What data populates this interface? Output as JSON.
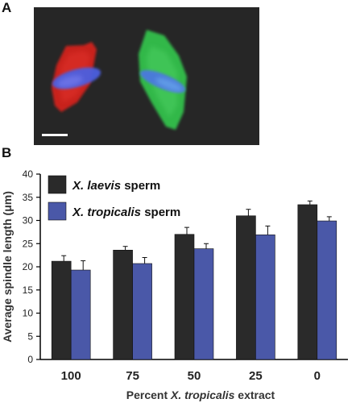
{
  "figure": {
    "panel_a_label": "A",
    "panel_b_label": "B"
  },
  "micrograph": {
    "background_color": "#262626",
    "spindle_left_color": "#c8211f",
    "spindle_right_color": "#33b84a",
    "chromatin_color": "#4b5fe0",
    "scale_bar_color": "#ffffff"
  },
  "chart_data": {
    "type": "bar",
    "categories": [
      "100",
      "75",
      "50",
      "25",
      "0"
    ],
    "xlabel_prefix": "Percent ",
    "xlabel_italic": "X. tropicalis",
    "xlabel_suffix": " extract",
    "ylabel": "Average spindle length (μm)",
    "ylim": [
      0,
      40
    ],
    "yticks": [
      0,
      5,
      10,
      15,
      20,
      25,
      30,
      35,
      40
    ],
    "grid": false,
    "legend_position": "top-left",
    "series": [
      {
        "name_italic": "X. laevis",
        "name_suffix": " sperm",
        "color": "#2a2a2a",
        "values": [
          21.2,
          23.6,
          27.0,
          31.0,
          33.4
        ],
        "errors": [
          1.2,
          0.8,
          1.5,
          1.4,
          0.8
        ]
      },
      {
        "name_italic": "X. tropicalis",
        "name_suffix": " sperm",
        "color": "#4a58a8",
        "values": [
          19.3,
          20.7,
          23.9,
          26.9,
          29.9
        ],
        "errors": [
          2.0,
          1.3,
          1.1,
          1.9,
          0.9
        ]
      }
    ]
  }
}
